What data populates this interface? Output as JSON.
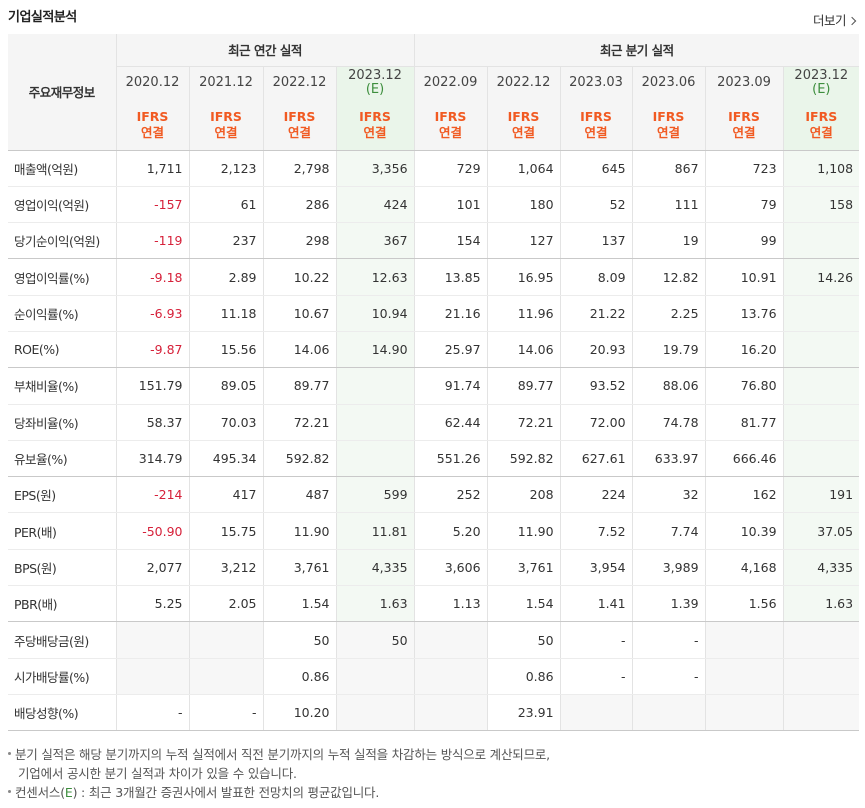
{
  "header": {
    "title": "기업실적분석",
    "more_label": "더보기"
  },
  "table": {
    "corner_label": "주요재무정보",
    "groups": {
      "annual": "최근 연간 실적",
      "quarterly": "최근 분기 실적"
    },
    "periods": [
      {
        "label": "2020.12",
        "est": false
      },
      {
        "label": "2021.12",
        "est": false
      },
      {
        "label": "2022.12",
        "est": false
      },
      {
        "label": "2023.12",
        "est": true,
        "est_mark": "(E)"
      },
      {
        "label": "2022.09",
        "est": false
      },
      {
        "label": "2022.12",
        "est": false
      },
      {
        "label": "2023.03",
        "est": false
      },
      {
        "label": "2023.06",
        "est": false
      },
      {
        "label": "2023.09",
        "est": false
      },
      {
        "label": "2023.12",
        "est": true,
        "est_mark": "(E)"
      }
    ],
    "basis": {
      "line1": "IFRS",
      "line2": "연결"
    },
    "rows": [
      {
        "label": "매출액(억원)",
        "values": [
          "1,711",
          "2,123",
          "2,798",
          "3,356",
          "729",
          "1,064",
          "645",
          "867",
          "723",
          "1,108"
        ],
        "group_end": false
      },
      {
        "label": "영업이익(억원)",
        "values": [
          "-157",
          "61",
          "286",
          "424",
          "101",
          "180",
          "52",
          "111",
          "79",
          "158"
        ],
        "group_end": false
      },
      {
        "label": "당기순이익(억원)",
        "values": [
          "-119",
          "237",
          "298",
          "367",
          "154",
          "127",
          "137",
          "19",
          "99",
          ""
        ],
        "group_end": true
      },
      {
        "label": "영업이익률(%)",
        "values": [
          "-9.18",
          "2.89",
          "10.22",
          "12.63",
          "13.85",
          "16.95",
          "8.09",
          "12.82",
          "10.91",
          "14.26"
        ],
        "group_end": false
      },
      {
        "label": "순이익률(%)",
        "values": [
          "-6.93",
          "11.18",
          "10.67",
          "10.94",
          "21.16",
          "11.96",
          "21.22",
          "2.25",
          "13.76",
          ""
        ],
        "group_end": false
      },
      {
        "label": "ROE(%)",
        "values": [
          "-9.87",
          "15.56",
          "14.06",
          "14.90",
          "25.97",
          "14.06",
          "20.93",
          "19.79",
          "16.20",
          ""
        ],
        "group_end": true
      },
      {
        "label": "부채비율(%)",
        "values": [
          "151.79",
          "89.05",
          "89.77",
          "",
          "91.74",
          "89.77",
          "93.52",
          "88.06",
          "76.80",
          ""
        ],
        "group_end": false
      },
      {
        "label": "당좌비율(%)",
        "values": [
          "58.37",
          "70.03",
          "72.21",
          "",
          "62.44",
          "72.21",
          "72.00",
          "74.78",
          "81.77",
          ""
        ],
        "group_end": false
      },
      {
        "label": "유보율(%)",
        "values": [
          "314.79",
          "495.34",
          "592.82",
          "",
          "551.26",
          "592.82",
          "627.61",
          "633.97",
          "666.46",
          ""
        ],
        "group_end": true
      },
      {
        "label": "EPS(원)",
        "values": [
          "-214",
          "417",
          "487",
          "599",
          "252",
          "208",
          "224",
          "32",
          "162",
          "191"
        ],
        "group_end": false
      },
      {
        "label": "PER(배)",
        "values": [
          "-50.90",
          "15.75",
          "11.90",
          "11.81",
          "5.20",
          "11.90",
          "7.52",
          "7.74",
          "10.39",
          "37.05"
        ],
        "group_end": false
      },
      {
        "label": "BPS(원)",
        "values": [
          "2,077",
          "3,212",
          "3,761",
          "4,335",
          "3,606",
          "3,761",
          "3,954",
          "3,989",
          "4,168",
          "4,335"
        ],
        "group_end": false
      },
      {
        "label": "PBR(배)",
        "values": [
          "5.25",
          "2.05",
          "1.54",
          "1.63",
          "1.13",
          "1.54",
          "1.41",
          "1.39",
          "1.56",
          "1.63"
        ],
        "group_end": true
      },
      {
        "label": "주당배당금(원)",
        "values": [
          "",
          "",
          "50",
          "50",
          "",
          "50",
          "-",
          "-",
          "",
          ""
        ],
        "group_end": false,
        "gray": true
      },
      {
        "label": "시가배당률(%)",
        "values": [
          "",
          "",
          "0.86",
          "",
          "",
          "0.86",
          "-",
          "-",
          "",
          ""
        ],
        "group_end": false,
        "gray": true
      },
      {
        "label": "배당성향(%)",
        "values": [
          "-",
          "-",
          "10.20",
          "",
          "",
          "23.91",
          "",
          "",
          "",
          ""
        ],
        "group_end": true,
        "gray": true
      }
    ]
  },
  "notes": {
    "line1": "분기 실적은 해당 분기까지의 누적 실적에서 직전 분기까지의 누적 실적을 차감하는 방식으로 계산되므로,",
    "line2": "기업에서 공시한 분기 실적과 차이가 있을 수 있습니다.",
    "line3_pre": "컨센서스(",
    "line3_mark": "E",
    "line3_post": ") : 최근 3개월간 증권사에서 발표한 전망치의 평균값입니다."
  },
  "colors": {
    "negative": "#d6213a",
    "ifrs": "#f15a22",
    "estimate": "#3d8e3d",
    "estimate_bg": "#f3f9f3"
  }
}
